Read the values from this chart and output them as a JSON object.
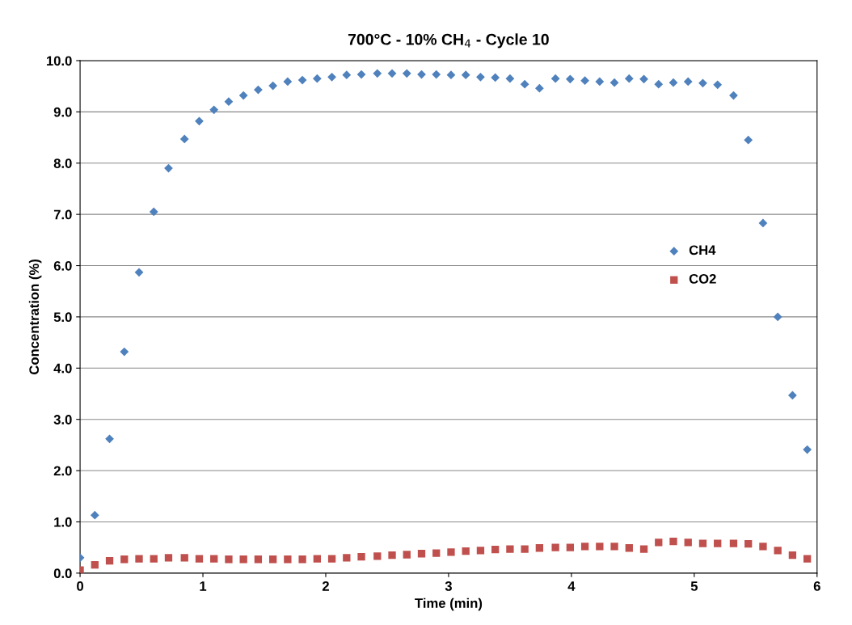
{
  "chart_data": {
    "type": "scatter",
    "title": "700°C - 10% CH$_{4}$ - Cycle 10",
    "xlabel": "Time (min)",
    "ylabel": "Concentration (%)",
    "xlim": [
      0,
      6
    ],
    "xticks": [
      0,
      1,
      2,
      3,
      4,
      5,
      6
    ],
    "ylim": [
      0,
      10
    ],
    "yticks": [
      {
        "value": 0,
        "label": "0.0"
      },
      {
        "value": 1,
        "label": "1.0"
      },
      {
        "value": 2,
        "label": "2.0"
      },
      {
        "value": 3,
        "label": "3.0"
      },
      {
        "value": 4,
        "label": "4.0"
      },
      {
        "value": 5,
        "label": "5.0"
      },
      {
        "value": 6,
        "label": "6.0"
      },
      {
        "value": 7,
        "label": "7.0"
      },
      {
        "value": 8,
        "label": "8.0"
      },
      {
        "value": 9,
        "label": "9.0"
      },
      {
        "value": 10,
        "label": "10.0"
      }
    ],
    "grid": "y",
    "legend": "right",
    "x": [
      0.0,
      0.12,
      0.24,
      0.36,
      0.48,
      0.6,
      0.72,
      0.85,
      0.97,
      1.09,
      1.21,
      1.33,
      1.45,
      1.57,
      1.69,
      1.81,
      1.93,
      2.05,
      2.17,
      2.29,
      2.42,
      2.54,
      2.66,
      2.78,
      2.9,
      3.02,
      3.14,
      3.26,
      3.38,
      3.5,
      3.62,
      3.74,
      3.87,
      3.99,
      4.11,
      4.23,
      4.35,
      4.47,
      4.59,
      4.71,
      4.83,
      4.95,
      5.07,
      5.19,
      5.32,
      5.44,
      5.56,
      5.68,
      5.8,
      5.92
    ],
    "series": [
      {
        "name": "CH4",
        "color": "#4f81bd",
        "marker": "diamond",
        "values": [
          0.3,
          1.13,
          2.62,
          4.32,
          5.87,
          7.05,
          7.9,
          8.47,
          8.82,
          9.04,
          9.2,
          9.32,
          9.43,
          9.51,
          9.59,
          9.62,
          9.65,
          9.68,
          9.72,
          9.73,
          9.75,
          9.75,
          9.75,
          9.73,
          9.73,
          9.72,
          9.72,
          9.68,
          9.67,
          9.65,
          9.54,
          9.46,
          9.65,
          9.64,
          9.61,
          9.59,
          9.57,
          9.65,
          9.64,
          9.54,
          9.57,
          9.59,
          9.56,
          9.53,
          9.32,
          8.45,
          6.83,
          5.0,
          3.47,
          2.41
        ]
      },
      {
        "name": "CO2",
        "color": "#c0504d",
        "marker": "square",
        "values": [
          0.06,
          0.16,
          0.24,
          0.27,
          0.28,
          0.28,
          0.3,
          0.3,
          0.28,
          0.28,
          0.27,
          0.27,
          0.27,
          0.27,
          0.27,
          0.27,
          0.28,
          0.28,
          0.3,
          0.32,
          0.33,
          0.35,
          0.36,
          0.38,
          0.39,
          0.41,
          0.43,
          0.44,
          0.46,
          0.47,
          0.47,
          0.49,
          0.5,
          0.5,
          0.52,
          0.52,
          0.52,
          0.49,
          0.47,
          0.6,
          0.62,
          0.6,
          0.58,
          0.58,
          0.58,
          0.57,
          0.52,
          0.44,
          0.35,
          0.28
        ]
      }
    ]
  }
}
